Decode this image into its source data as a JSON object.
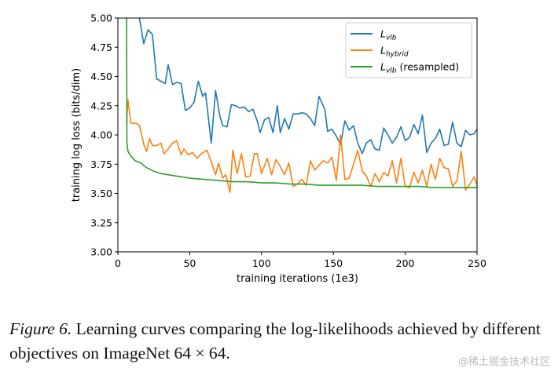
{
  "chart_data": {
    "type": "line",
    "xlabel": "training iterations (1e3)",
    "ylabel": "training log loss (bits/dim)",
    "xlim": [
      0,
      250
    ],
    "ylim": [
      3.0,
      5.0
    ],
    "xticks": [
      0,
      50,
      100,
      150,
      200,
      250
    ],
    "yticks": [
      3.0,
      3.25,
      3.5,
      3.75,
      4.0,
      4.25,
      4.5,
      4.75,
      5.0
    ],
    "xtick_labels": [
      "0",
      "50",
      "100",
      "150",
      "200",
      "250"
    ],
    "ytick_labels": [
      "3.00",
      "3.25",
      "3.50",
      "3.75",
      "4.00",
      "4.25",
      "4.50",
      "4.75",
      "5.00"
    ],
    "grid": false,
    "legend_position": "top-right",
    "series": [
      {
        "name": "L_vlb",
        "legend_main": "L",
        "legend_sub": "vlb",
        "legend_suffix": "",
        "color": "#1f77b4",
        "x": [
          5,
          10,
          15,
          18,
          21,
          24,
          27,
          30,
          33,
          35,
          38,
          41,
          44,
          47,
          50,
          53,
          56,
          59,
          61,
          65,
          68,
          71,
          73,
          76,
          79,
          82,
          85,
          88,
          91,
          94,
          97,
          99,
          102,
          105,
          108,
          111,
          113,
          116,
          119,
          122,
          125,
          128,
          131,
          134,
          137,
          140,
          144,
          146,
          149,
          152,
          155,
          158,
          161,
          164,
          167,
          170,
          173,
          176,
          179,
          182,
          185,
          188,
          191,
          194,
          197,
          200,
          203,
          206,
          209,
          212,
          215,
          218,
          221,
          224,
          227,
          230,
          233,
          236,
          239,
          242,
          245,
          248,
          250
        ],
        "y": [
          5.0,
          5.1,
          5.0,
          4.78,
          4.9,
          4.86,
          4.48,
          4.46,
          4.44,
          4.6,
          4.43,
          4.45,
          4.44,
          4.21,
          4.23,
          4.28,
          4.46,
          4.33,
          4.36,
          3.93,
          4.38,
          4.16,
          4.08,
          4.07,
          4.26,
          4.25,
          4.23,
          4.24,
          4.2,
          4.22,
          4.12,
          4.02,
          4.13,
          4.15,
          4.02,
          4.25,
          4.02,
          4.14,
          4.05,
          4.18,
          4.18,
          4.19,
          4.18,
          4.14,
          4.08,
          4.33,
          4.22,
          4.03,
          4.05,
          3.99,
          3.92,
          4.12,
          4.04,
          4.08,
          3.93,
          3.84,
          3.93,
          3.96,
          3.88,
          3.87,
          4.06,
          4.0,
          3.93,
          3.98,
          4.07,
          3.95,
          3.98,
          4.09,
          4.01,
          4.17,
          3.85,
          3.93,
          3.97,
          4.05,
          3.91,
          3.92,
          4.11,
          3.93,
          3.9,
          4.04,
          4.0,
          4.01,
          4.05
        ]
      },
      {
        "name": "L_hybrid",
        "legend_main": "L",
        "legend_sub": "hybrid",
        "legend_suffix": "",
        "color": "#ff7f0e",
        "x": [
          6,
          7,
          9,
          13,
          15,
          18,
          20,
          22,
          24,
          27,
          30,
          32,
          35,
          38,
          41,
          44,
          46,
          49,
          52,
          55,
          58,
          62,
          65,
          68,
          70,
          73,
          75,
          78,
          80,
          83,
          86,
          89,
          92,
          95,
          97,
          100,
          104,
          107,
          110,
          113,
          116,
          119,
          122,
          125,
          128,
          131,
          134,
          137,
          140,
          143,
          146,
          149,
          152,
          155,
          158,
          161,
          164,
          167,
          170,
          173,
          176,
          179,
          182,
          185,
          188,
          191,
          194,
          197,
          200,
          203,
          206,
          209,
          212,
          215,
          218,
          221,
          224,
          227,
          230,
          233,
          236,
          239,
          242,
          245,
          248,
          250
        ],
        "y": [
          4.1,
          4.3,
          4.1,
          4.1,
          4.08,
          3.92,
          3.86,
          3.97,
          3.91,
          3.91,
          3.93,
          3.84,
          3.88,
          3.93,
          3.95,
          3.83,
          3.88,
          3.83,
          3.85,
          3.8,
          3.84,
          3.87,
          3.77,
          3.66,
          3.76,
          3.63,
          3.66,
          3.51,
          3.87,
          3.67,
          3.84,
          3.64,
          3.65,
          3.84,
          3.84,
          3.67,
          3.8,
          3.66,
          3.79,
          3.73,
          3.66,
          3.76,
          3.56,
          3.58,
          3.62,
          3.57,
          3.78,
          3.7,
          3.74,
          3.78,
          3.76,
          3.81,
          3.61,
          4.0,
          3.62,
          3.63,
          3.75,
          3.87,
          3.69,
          3.65,
          3.56,
          3.67,
          3.6,
          3.68,
          3.65,
          3.78,
          3.59,
          3.8,
          3.56,
          3.55,
          3.68,
          3.59,
          3.7,
          3.56,
          3.75,
          3.62,
          3.8,
          3.72,
          3.71,
          3.56,
          3.61,
          3.86,
          3.53,
          3.58,
          3.64,
          3.57
        ]
      },
      {
        "name": "L_vlb (resampled)",
        "legend_main": "L",
        "legend_sub": "vlb",
        "legend_suffix": " (resampled)",
        "color": "#2ca02c",
        "x": [
          6,
          6.3,
          7,
          9,
          12,
          16,
          20,
          25,
          30,
          40,
          50,
          60,
          70,
          80,
          90,
          100,
          110,
          120,
          130,
          140,
          150,
          160,
          170,
          180,
          190,
          200,
          210,
          220,
          230,
          240,
          250
        ],
        "y": [
          5.2,
          3.93,
          3.86,
          3.82,
          3.78,
          3.76,
          3.72,
          3.69,
          3.67,
          3.65,
          3.63,
          3.62,
          3.61,
          3.6,
          3.6,
          3.59,
          3.59,
          3.58,
          3.58,
          3.57,
          3.57,
          3.57,
          3.57,
          3.56,
          3.56,
          3.56,
          3.56,
          3.55,
          3.55,
          3.55,
          3.55
        ]
      }
    ]
  },
  "caption": {
    "lead": "Figure 6.",
    "text": " Learning curves comparing the log-likelihoods achieved by different objectives on ImageNet 64 × 64."
  },
  "watermark": "@稀土掘金技术社区"
}
